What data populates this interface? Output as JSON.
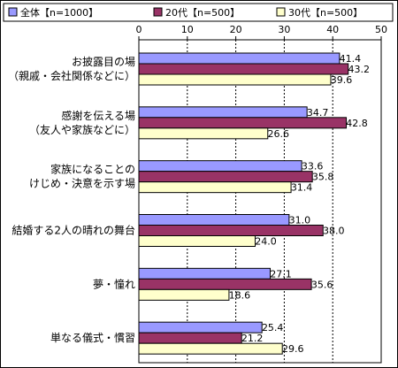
{
  "chart_data": {
    "type": "bar",
    "orientation": "horizontal",
    "xlim": [
      0,
      50
    ],
    "x_ticks": [
      "0",
      "10",
      "20",
      "30",
      "40",
      "50"
    ],
    "grid": "vertical dashed",
    "legend_position": "top",
    "categories": [
      [
        "お披露目の場",
        "（親戚・会社関係などに）"
      ],
      [
        "感謝を伝える場",
        "（友人や家族などに）"
      ],
      [
        "家族になることの",
        "けじめ・決意を示す場"
      ],
      [
        "結婚する2人の晴れの舞台"
      ],
      [
        "夢・憧れ"
      ],
      [
        "単なる儀式・慣習"
      ]
    ],
    "series": [
      {
        "name": "全体【n=1000】",
        "color": "#9999ff",
        "values": [
          41.4,
          34.7,
          33.6,
          31.0,
          27.1,
          25.4
        ],
        "labels": [
          "41.4",
          "34.7",
          "33.6",
          "31.0",
          "27.1",
          "25.4"
        ]
      },
      {
        "name": "20代【n=500】",
        "color": "#993366",
        "values": [
          43.2,
          42.8,
          35.8,
          38.0,
          35.6,
          21.2
        ],
        "labels": [
          "43.2",
          "42.8",
          "35.8",
          "38.0",
          "35.6",
          "21.2"
        ]
      },
      {
        "name": "30代【n=500】",
        "color": "#ffffcc",
        "values": [
          39.6,
          26.6,
          31.4,
          24.0,
          18.6,
          29.6
        ],
        "labels": [
          "39.6",
          "26.6",
          "31.4",
          "24.0",
          "18.6",
          "29.6"
        ]
      }
    ]
  }
}
